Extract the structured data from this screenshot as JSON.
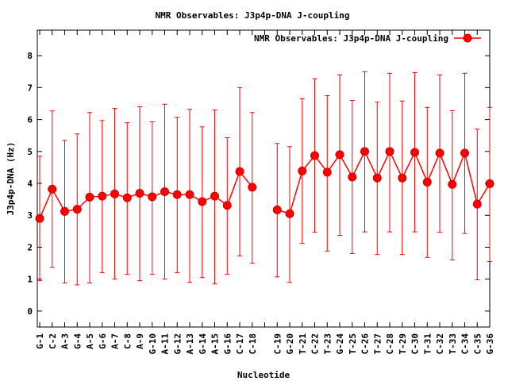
{
  "chart_data": {
    "type": "line",
    "title": "NMR Observables: J3p4p-DNA J-coupling",
    "xlabel": "Nucleotide",
    "ylabel": "J3p4p-DNA (Hz)",
    "ylim": [
      -0.5,
      8.8
    ],
    "yticks": [
      0,
      1,
      2,
      3,
      4,
      5,
      6,
      7,
      8
    ],
    "grid": false,
    "legend_position": "top-right",
    "categories": [
      "G-1",
      "C-2",
      "A-3",
      "G-4",
      "A-5",
      "G-6",
      "A-7",
      "C-8",
      "A-9",
      "G-10",
      "A-11",
      "G-12",
      "A-13",
      "G-14",
      "A-15",
      "G-16",
      "C-17",
      "C-18",
      "",
      "C-19",
      "G-20",
      "T-21",
      "C-22",
      "T-23",
      "G-24",
      "T-25",
      "C-26",
      "T-27",
      "C-28",
      "T-29",
      "C-30",
      "T-31",
      "C-32",
      "T-33",
      "C-34",
      "C-35",
      "G-36"
    ],
    "series": [
      {
        "name": "NMR Observables: J3p4p-DNA J-coupling",
        "color": "#ff0000",
        "values": [
          2.9,
          3.82,
          3.12,
          3.19,
          3.57,
          3.6,
          3.67,
          3.55,
          3.69,
          3.58,
          3.74,
          3.65,
          3.65,
          3.43,
          3.6,
          3.31,
          4.37,
          3.88,
          null,
          3.17,
          3.05,
          4.39,
          4.87,
          4.35,
          4.9,
          4.2,
          5.0,
          4.17,
          5.0,
          4.17,
          4.97,
          4.04,
          4.95,
          3.97,
          4.95,
          3.35,
          3.99
        ],
        "err_low": [
          0.95,
          1.37,
          0.88,
          0.82,
          0.88,
          1.2,
          1.0,
          1.15,
          0.95,
          1.15,
          1.0,
          1.2,
          0.9,
          1.05,
          0.85,
          1.15,
          1.73,
          1.5,
          null,
          1.07,
          0.9,
          2.12,
          2.47,
          1.88,
          2.37,
          1.8,
          2.48,
          1.77,
          2.48,
          1.77,
          2.48,
          1.68,
          2.47,
          1.6,
          2.43,
          0.98,
          1.55
        ],
        "err_high": [
          4.85,
          6.27,
          5.35,
          5.55,
          6.22,
          5.97,
          6.35,
          5.9,
          6.4,
          5.93,
          6.48,
          6.07,
          6.32,
          5.77,
          6.3,
          5.43,
          7.0,
          6.22,
          null,
          5.25,
          5.15,
          6.65,
          7.28,
          6.75,
          7.4,
          6.6,
          7.5,
          6.55,
          7.45,
          6.58,
          7.47,
          6.38,
          7.4,
          6.28,
          7.45,
          5.7,
          6.38
        ]
      }
    ]
  }
}
